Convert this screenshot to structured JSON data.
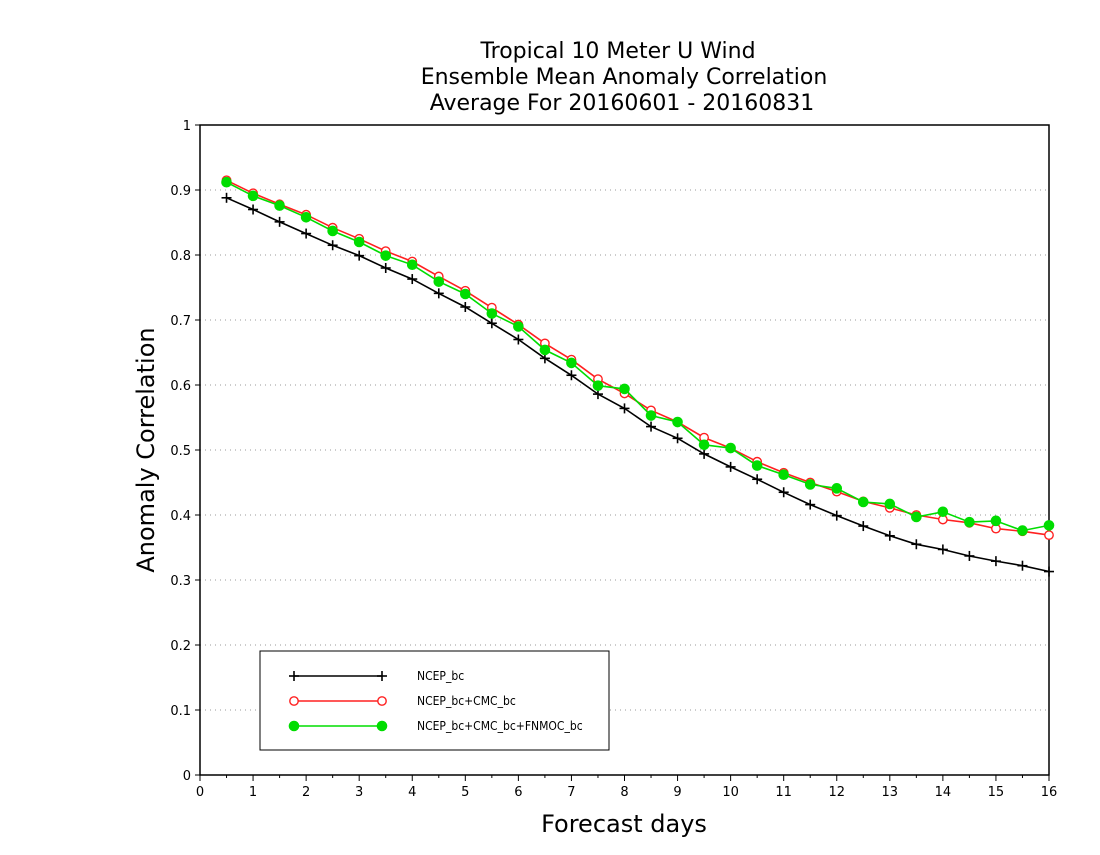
{
  "chart_data": {
    "type": "line",
    "title": [
      "Tropical 10 Meter U Wind",
      "Ensemble Mean Anomaly Correlation",
      "Average For 20160601 - 20160831"
    ],
    "xlabel": "Forecast days",
    "ylabel": "Anomaly Correlation",
    "xlim": [
      0,
      16
    ],
    "ylim": [
      0,
      1
    ],
    "xticks": [
      "0",
      "1",
      "2",
      "3",
      "4",
      "5",
      "6",
      "7",
      "8",
      "9",
      "10",
      "11",
      "12",
      "13",
      "14",
      "15",
      "16"
    ],
    "yticks": [
      "0",
      "0.1",
      "0.2",
      "0.3",
      "0.4",
      "0.5",
      "0.6",
      "0.7",
      "0.8",
      "0.9",
      "1"
    ],
    "grid": true,
    "legend_position": "bottom-left",
    "x": [
      0.5,
      1,
      1.5,
      2,
      2.5,
      3,
      3.5,
      4,
      4.5,
      5,
      5.5,
      6,
      6.5,
      7,
      7.5,
      8,
      8.5,
      9,
      9.5,
      10,
      10.5,
      11,
      11.5,
      12,
      12.5,
      13,
      13.5,
      14,
      14.5,
      15,
      15.5,
      16
    ],
    "series": [
      {
        "name": "NCEP_bc",
        "color": "#000000",
        "marker": "plus",
        "values": [
          0.888,
          0.87,
          0.851,
          0.833,
          0.815,
          0.799,
          0.78,
          0.763,
          0.741,
          0.72,
          0.695,
          0.67,
          0.641,
          0.615,
          0.586,
          0.564,
          0.536,
          0.518,
          0.494,
          0.474,
          0.455,
          0.435,
          0.416,
          0.399,
          0.383,
          0.368,
          0.355,
          0.347,
          0.337,
          0.329,
          0.322,
          0.313
        ]
      },
      {
        "name": "NCEP_bc+CMC_bc",
        "color": "#ff2020",
        "marker": "open-circle",
        "values": [
          0.915,
          0.895,
          0.878,
          0.862,
          0.842,
          0.825,
          0.806,
          0.79,
          0.767,
          0.745,
          0.719,
          0.693,
          0.664,
          0.639,
          0.609,
          0.587,
          0.561,
          0.543,
          0.519,
          0.503,
          0.482,
          0.465,
          0.45,
          0.436,
          0.421,
          0.411,
          0.4,
          0.393,
          0.388,
          0.379,
          0.375,
          0.369
        ]
      },
      {
        "name": "NCEP_bc+CMC_bc+FNMOC_bc",
        "color": "#00dd00",
        "marker": "filled-circle",
        "values": [
          0.912,
          0.891,
          0.876,
          0.858,
          0.837,
          0.82,
          0.799,
          0.785,
          0.759,
          0.74,
          0.71,
          0.69,
          0.654,
          0.634,
          0.599,
          0.594,
          0.553,
          0.543,
          0.508,
          0.503,
          0.476,
          0.462,
          0.447,
          0.441,
          0.42,
          0.417,
          0.397,
          0.405,
          0.389,
          0.391,
          0.376,
          0.384
        ]
      }
    ]
  }
}
